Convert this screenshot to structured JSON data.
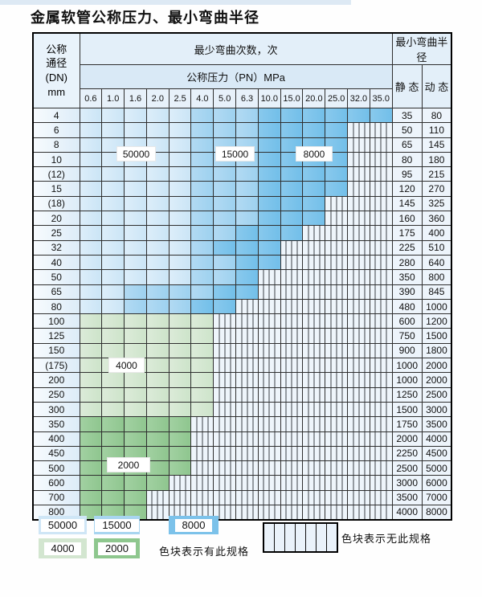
{
  "page": {
    "title": "金属软管公称压力、最小弯曲半径"
  },
  "table": {
    "header": {
      "dn": "公称\n通径\n(DN)\nmm",
      "bend_cycles": "最少弯曲次数，次",
      "pressure": "公称压力（PN）MPa",
      "min_bend_radius": "最小弯曲半径",
      "static": "静 态",
      "dynamic": "动 态"
    },
    "pressure_columns": [
      "0.6",
      "1.0",
      "1.6",
      "2.0",
      "2.5",
      "4.0",
      "5.0",
      "6.3",
      "10.0",
      "15.0",
      "20.0",
      "25.0",
      "32.0",
      "35.0"
    ],
    "cell_codes": {
      "L": "50000",
      "M": "15000",
      "D": "8000",
      "g": "4000",
      "G": "2000",
      "H": "no-spec"
    },
    "rows": [
      {
        "dn": "4",
        "cells": "LLLLLMMMDDDDDD",
        "static": "35",
        "dynamic": "80"
      },
      {
        "dn": "6",
        "cells": "LLLLLMMMDDDDHH",
        "static": "50",
        "dynamic": "110"
      },
      {
        "dn": "8",
        "cells": "LLLLLMMMDDDDHH",
        "static": "65",
        "dynamic": "145"
      },
      {
        "dn": "10",
        "cells": "LLLLLMMMDDDDHH",
        "static": "80",
        "dynamic": "180"
      },
      {
        "dn": "(12)",
        "cells": "LLLLLMMMDDDDHH",
        "static": "95",
        "dynamic": "215"
      },
      {
        "dn": "15",
        "cells": "LLLLLMMMDDDDHH",
        "static": "120",
        "dynamic": "270"
      },
      {
        "dn": "(18)",
        "cells": "LLLLLMMMDDDHHH",
        "static": "145",
        "dynamic": "325"
      },
      {
        "dn": "20",
        "cells": "LLLLLMMMDDDHHH",
        "static": "160",
        "dynamic": "360"
      },
      {
        "dn": "25",
        "cells": "LLLLLMMDDDHHHH",
        "static": "175",
        "dynamic": "400"
      },
      {
        "dn": "32",
        "cells": "LLLLLMDDDHHHHH",
        "static": "225",
        "dynamic": "510"
      },
      {
        "dn": "40",
        "cells": "LLLLLMMDDHHHHH",
        "static": "280",
        "dynamic": "640"
      },
      {
        "dn": "50",
        "cells": "LLLLLMMDHHHHHH",
        "static": "350",
        "dynamic": "800"
      },
      {
        "dn": "65",
        "cells": "LLMMMMDDHHHHHH",
        "static": "390",
        "dynamic": "845"
      },
      {
        "dn": "80",
        "cells": "LLMMMDDHHHHHHH",
        "static": "480",
        "dynamic": "1000"
      },
      {
        "dn": "100",
        "cells": "ggggggHHHHHHHH",
        "static": "600",
        "dynamic": "1200"
      },
      {
        "dn": "125",
        "cells": "ggggggHHHHHHHH",
        "static": "750",
        "dynamic": "1500"
      },
      {
        "dn": "150",
        "cells": "ggggggHHHHHHHH",
        "static": "900",
        "dynamic": "1800"
      },
      {
        "dn": "(175)",
        "cells": "ggggggHHHHHHHH",
        "static": "1000",
        "dynamic": "2000"
      },
      {
        "dn": "200",
        "cells": "ggggggHHHHHHHH",
        "static": "1000",
        "dynamic": "2000"
      },
      {
        "dn": "250",
        "cells": "ggggggHHHHHHHH",
        "static": "1250",
        "dynamic": "2500"
      },
      {
        "dn": "300",
        "cells": "ggggggHHHHHHHH",
        "static": "1500",
        "dynamic": "3000"
      },
      {
        "dn": "350",
        "cells": "GGGGGHHHHHHHHH",
        "static": "1750",
        "dynamic": "3500"
      },
      {
        "dn": "400",
        "cells": "GGGGGHHHHHHHHH",
        "static": "2000",
        "dynamic": "4000"
      },
      {
        "dn": "450",
        "cells": "GGGGGHHHHHHHHH",
        "static": "2250",
        "dynamic": "4500"
      },
      {
        "dn": "500",
        "cells": "GGGGGHHHHHHHHH",
        "static": "2500",
        "dynamic": "5000"
      },
      {
        "dn": "600",
        "cells": "GGGGHHHHHHHHHH",
        "static": "3000",
        "dynamic": "6000"
      },
      {
        "dn": "700",
        "cells": "GGGHHHHHHHHHHH",
        "static": "3500",
        "dynamic": "7000"
      },
      {
        "dn": "800",
        "cells": "GGGHHHHHHHHHHH",
        "static": "4000",
        "dynamic": "8000"
      }
    ],
    "overlays": [
      {
        "label": "50000"
      },
      {
        "label": "15000"
      },
      {
        "label": "8000"
      },
      {
        "label": "4000"
      },
      {
        "label": "2000"
      }
    ]
  },
  "legend": {
    "swatches": [
      {
        "label": "50000",
        "color": "#cfe6f6"
      },
      {
        "label": "15000",
        "color": "#a8d5f0"
      },
      {
        "label": "8000",
        "color": "#7cc2ea"
      },
      {
        "label": "4000",
        "color": "#d3e6d0"
      },
      {
        "label": "2000",
        "color": "#8ec78e"
      }
    ],
    "has_spec_text": "色块表示有此规格",
    "no_spec_text": "色块表示无此规格"
  },
  "colors": {
    "c50000": "#cfe6f6",
    "c15000": "#a8d5f0",
    "c8000": "#7cc2ea",
    "c4000": "#d3e6d0",
    "c2000": "#8ec78e",
    "hatch_bg": "#eef5fb",
    "grid_line": "#2f2f2f"
  }
}
